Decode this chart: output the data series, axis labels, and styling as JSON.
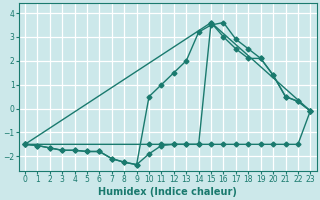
{
  "xlabel": "Humidex (Indice chaleur)",
  "bg_color": "#cce8ea",
  "grid_color": "#ffffff",
  "line_color": "#1a7a6e",
  "xlim": [
    -0.5,
    23.5
  ],
  "ylim": [
    -2.6,
    4.4
  ],
  "xticks": [
    0,
    1,
    2,
    3,
    4,
    5,
    6,
    7,
    8,
    9,
    10,
    11,
    12,
    13,
    14,
    15,
    16,
    17,
    18,
    19,
    20,
    21,
    22,
    23
  ],
  "yticks": [
    -2,
    -1,
    0,
    1,
    2,
    3,
    4
  ],
  "line1_x": [
    0,
    1,
    2,
    3,
    4,
    5,
    6,
    7,
    8,
    9,
    10,
    11,
    12,
    13,
    14,
    15,
    16,
    17,
    18,
    19,
    20,
    21,
    22,
    23
  ],
  "line1_y": [
    -1.5,
    -1.55,
    -1.65,
    -1.75,
    -1.75,
    -1.8,
    -1.8,
    -2.1,
    -2.25,
    -2.35,
    -1.9,
    -1.55,
    -1.5,
    -1.5,
    -1.5,
    -1.5,
    -1.5,
    -1.5,
    -1.5,
    -1.5,
    -1.5,
    -1.5,
    -1.5,
    -0.1
  ],
  "line2_x": [
    0,
    1,
    2,
    3,
    4,
    5,
    6,
    7,
    8,
    9,
    10,
    11,
    12,
    13,
    14,
    15,
    16,
    17,
    18,
    19,
    20,
    21,
    22,
    23
  ],
  "line2_y": [
    -1.5,
    -1.55,
    -1.65,
    -1.75,
    -1.75,
    -1.8,
    -1.8,
    -2.1,
    -2.25,
    -2.35,
    0.5,
    1.0,
    1.5,
    2.0,
    3.2,
    3.5,
    3.6,
    2.9,
    2.5,
    2.1,
    1.4,
    0.5,
    0.3,
    -0.1
  ],
  "line3_x": [
    0,
    10,
    11,
    12,
    13,
    14,
    15,
    16,
    17,
    18,
    19,
    20,
    21,
    22,
    23
  ],
  "line3_y": [
    -1.5,
    -1.5,
    -1.5,
    -1.5,
    -1.5,
    -1.5,
    3.6,
    3.0,
    2.5,
    2.1,
    2.1,
    1.4,
    0.5,
    0.3,
    -0.1
  ],
  "line4_x": [
    0,
    15,
    23
  ],
  "line4_y": [
    -1.5,
    3.6,
    -0.1
  ],
  "markersize": 2.5,
  "linewidth": 1.0
}
